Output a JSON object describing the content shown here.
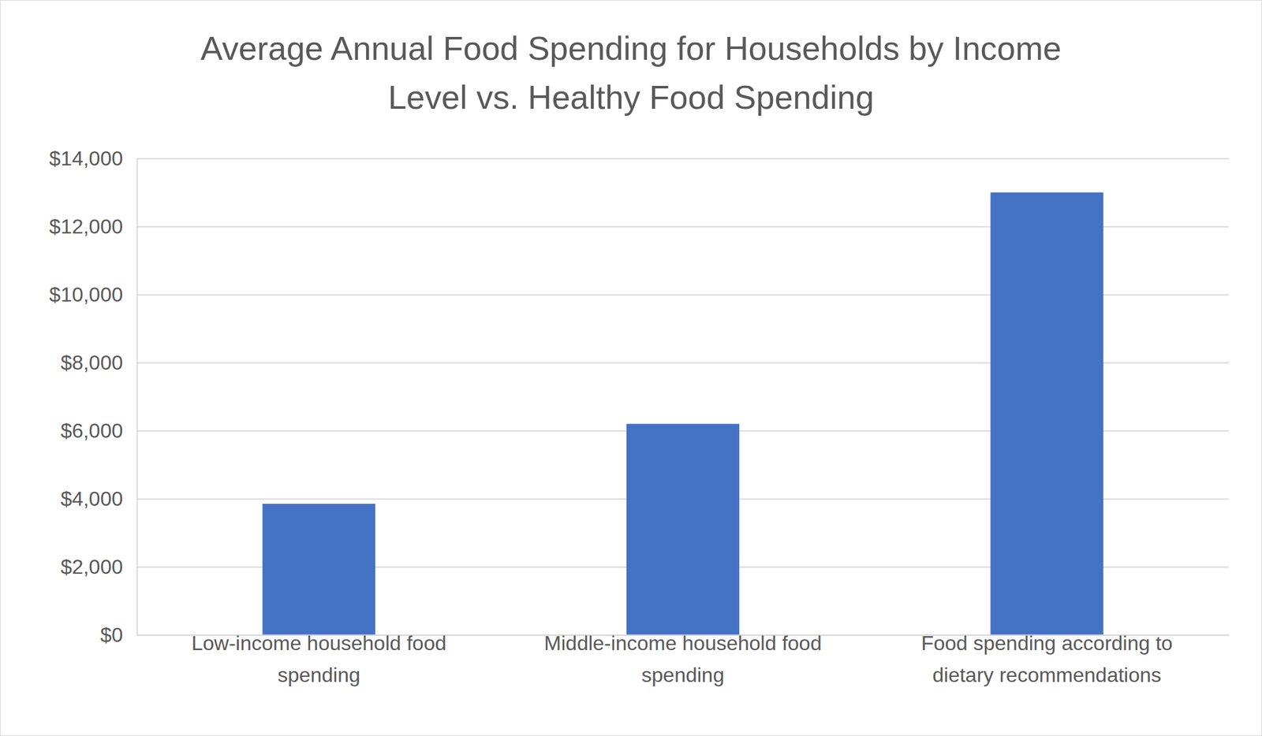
{
  "chart_data": {
    "type": "bar",
    "title": "Average Annual Food Spending for Households by Income Level vs. Healthy Food Spending",
    "categories": [
      "Low-income household food spending",
      "Middle-income household food spending",
      "Food spending according to dietary recommendations"
    ],
    "values": [
      3850,
      6200,
      13000
    ],
    "color": "#4472c4",
    "ylim": [
      0,
      14000
    ],
    "yticks": [
      {
        "value": 0,
        "label": "$0"
      },
      {
        "value": 2000,
        "label": "$2,000"
      },
      {
        "value": 4000,
        "label": "$4,000"
      },
      {
        "value": 6000,
        "label": "$6,000"
      },
      {
        "value": 8000,
        "label": "$8,000"
      },
      {
        "value": 10000,
        "label": "$10,000"
      },
      {
        "value": 12000,
        "label": "$12,000"
      },
      {
        "value": 14000,
        "label": "$14,000"
      }
    ],
    "grid": true
  }
}
